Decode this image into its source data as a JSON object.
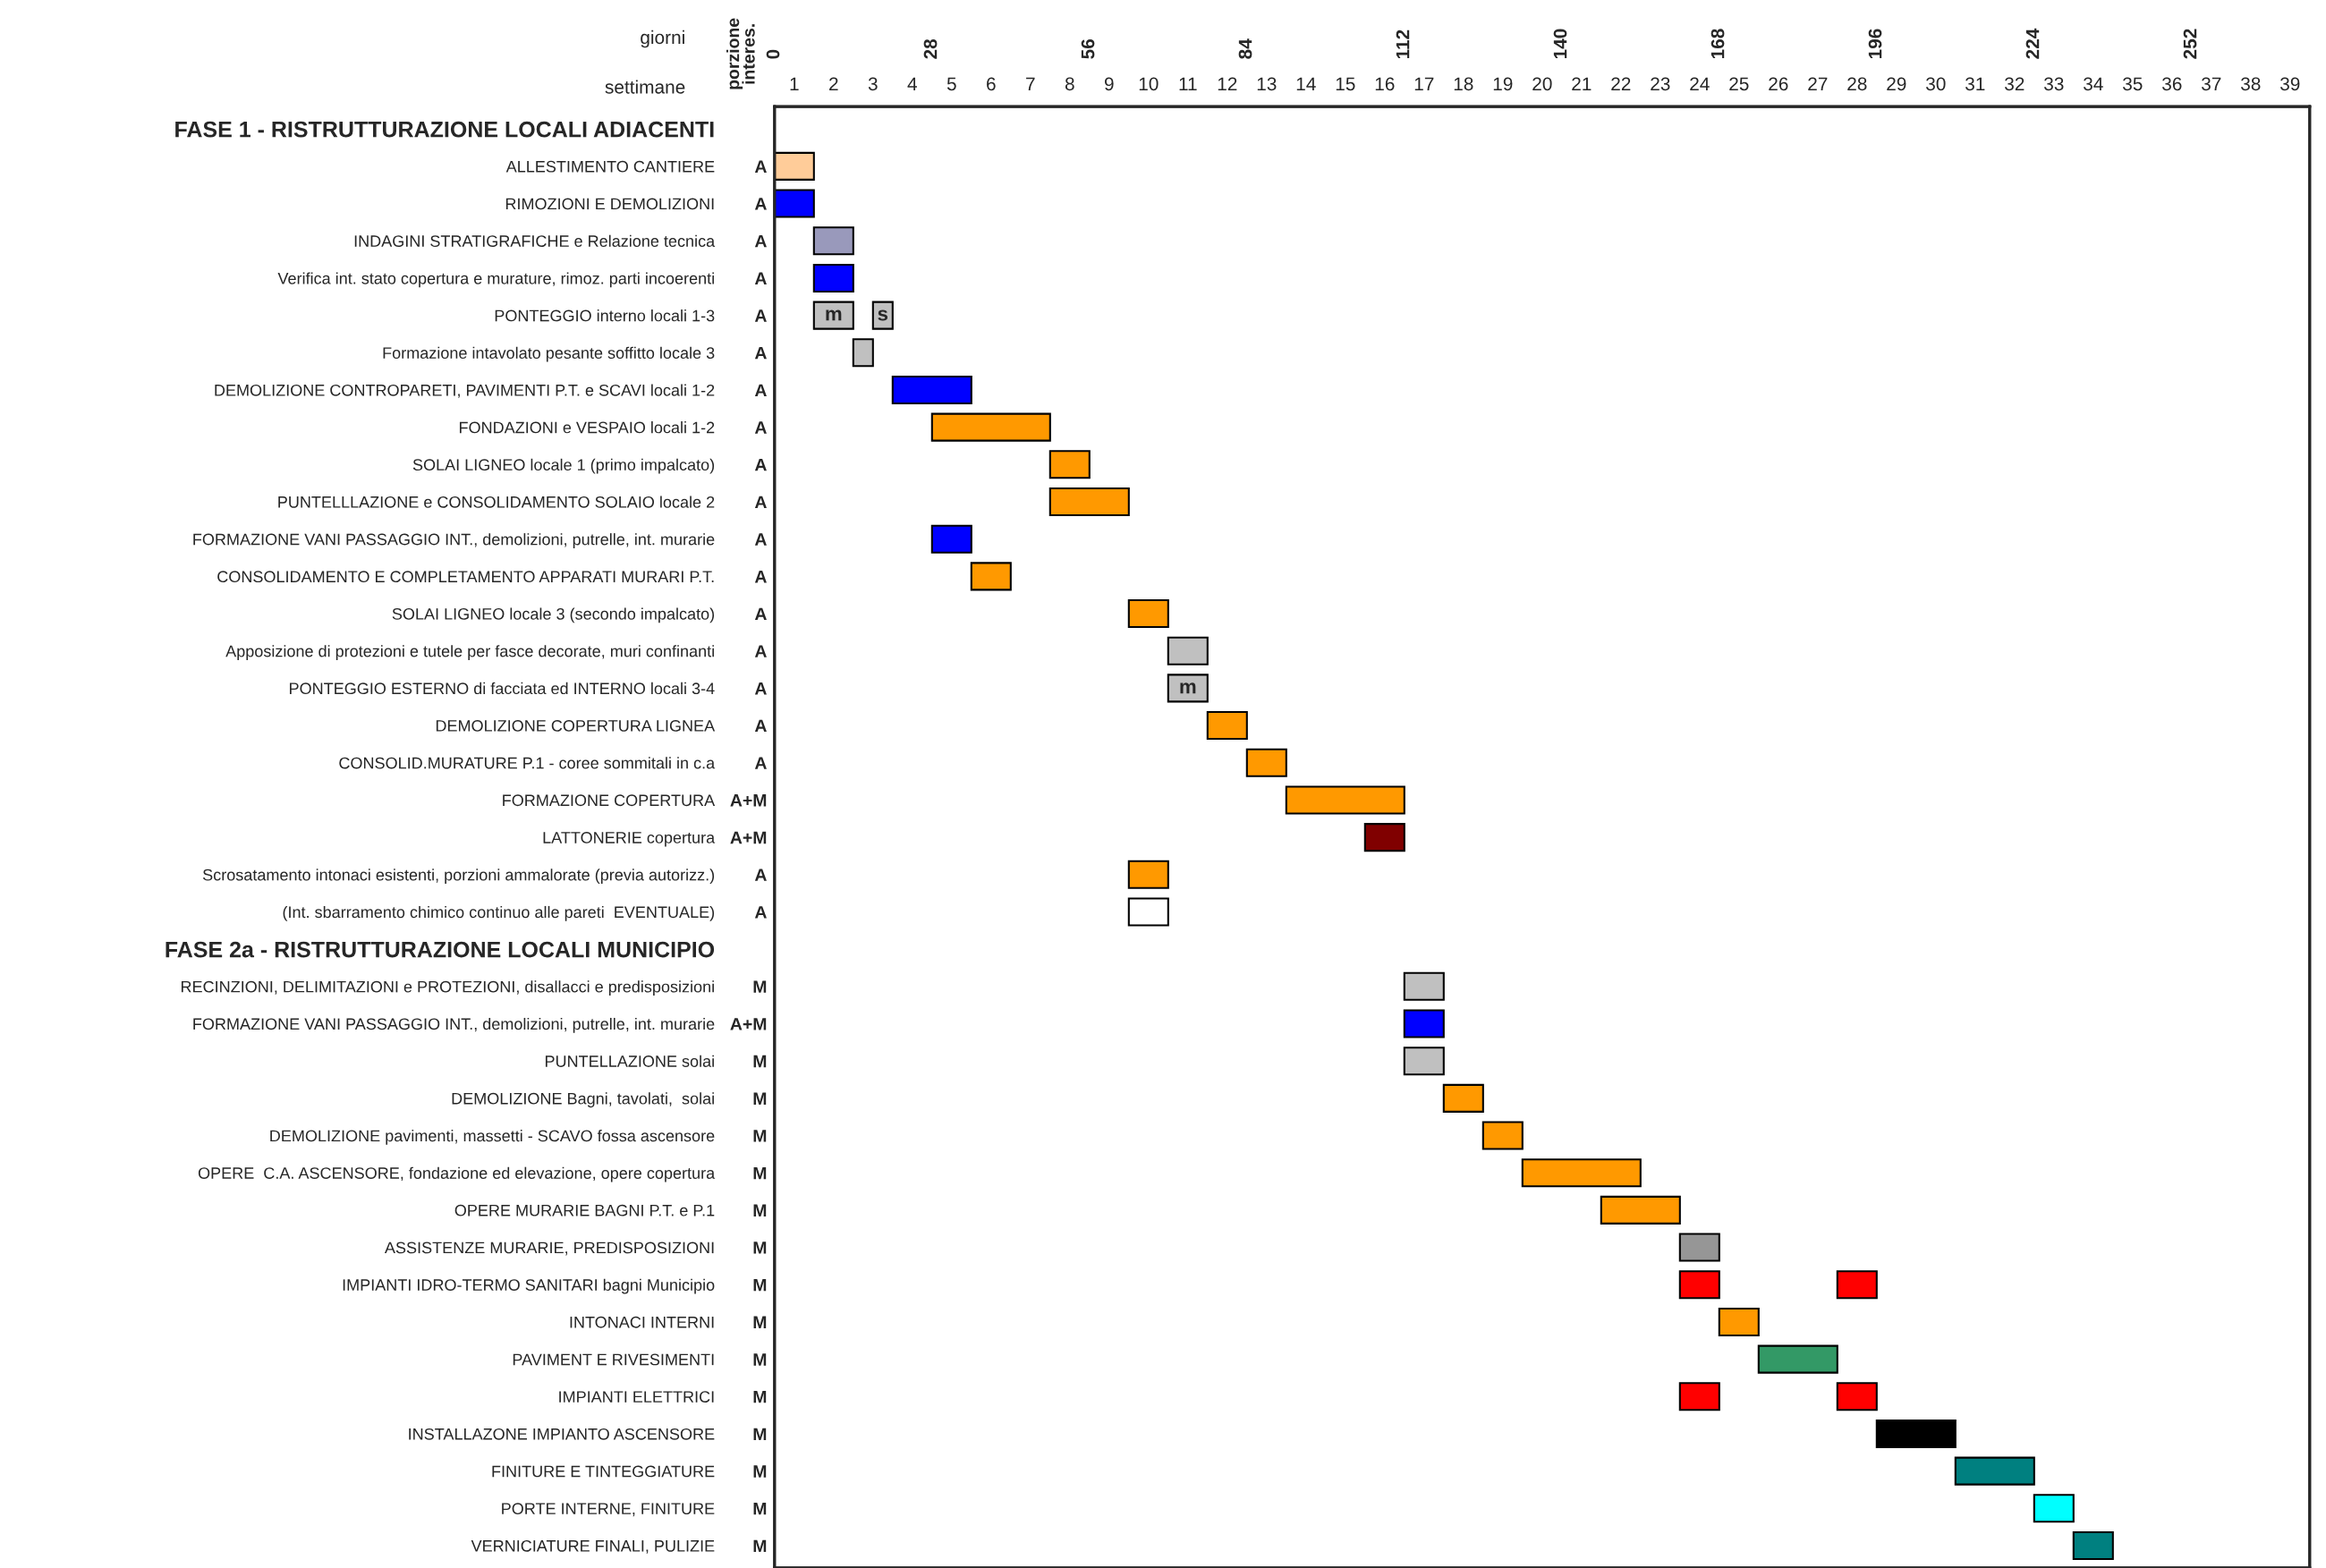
{
  "chart_data": {
    "type": "bar",
    "orientation": "horizontal",
    "xlabel": "settimane",
    "x2label": "giorni",
    "y2label": "porzione interes.",
    "categories": [
      "FASE 1 - RISTRUTTURAZIONE LOCALI ADIACENTI",
      "ALLESTIMENTO CANTIERE",
      "RIMOZIONI E DEMOLIZIONI",
      "INDAGINI STRATIGRAFICHE e Relazione tecnica",
      "Verifica int. stato copertura e murature, rimoz. parti incoerenti",
      "PONTEGGIO interno locali 1-3",
      "Formazione intavolato pesante soffitto locale 3",
      "DEMOLIZIONE CONTROPARETI, PAVIMENTI P.T. e SCAVI locali 1-2",
      "FONDAZIONI e VESPAIO locali 1-2",
      "SOLAI LIGNEO locale 1 (primo impalcato)",
      "PUNTELLLAZIONE e CONSOLIDAMENTO SOLAIO locale 2",
      "FORMAZIONE VANI PASSAGGIO INT., demolizioni, putrelle, int. murarie",
      "CONSOLIDAMENTO E COMPLETAMENTO APPARATI MURARI P.T.",
      "SOLAI LIGNEO locale 3 (secondo impalcato)",
      "Apposizione di protezioni e tutele per fasce decorate, muri confinanti",
      "PONTEGGIO ESTERNO di facciata ed INTERNO locali 3-4",
      "DEMOLIZIONE COPERTURA LIGNEA",
      "CONSOLID.MURATURE P.1 - coree sommitali in c.a",
      "FORMAZIONE COPERTURA",
      "LATTONERIE copertura",
      "Scrosatamento intonaci esistenti, porzioni ammalorate (previa autorizz.)",
      "(Int. sbarramento chimico continuo alle pareti  EVENTUALE)",
      "FASE 2a - RISTRUTTURAZIONE LOCALI MUNICIPIO",
      "RECINZIONI, DELIMITAZIONI e PROTEZIONI, disallacci e predisposizioni",
      "FORMAZIONE VANI PASSAGGIO INT., demolizioni, putrelle, int. murarie",
      "PUNTELLAZIONE solai",
      "DEMOLIZIONE Bagni, tavolati,  solai",
      "DEMOLIZIONE pavimenti, massetti - SCAVO fossa ascensore",
      "OPERE  C.A. ASCENSORE, fondazione ed elevazione, opere copertura",
      "OPERE MURARIE BAGNI P.T. e P.1",
      "ASSISTENZE MURARIE, PREDISPOSIZIONI",
      "IMPIANTI IDRO-TERMO SANITARI bagni Municipio",
      "INTONACI INTERNI",
      "PAVIMENT E RIVESIMENTI",
      "IMPIANTI ELETTRICI",
      "INSTALLAZONE IMPIANTO ASCENSORE",
      "FINITURE E TINTEGGIATURE",
      "PORTE INTERNE, FINITURE",
      "VERNICIATURE FINALI, PULIZIE"
    ],
    "y2_categories": [
      null,
      "A",
      "A",
      "A",
      "A",
      "A",
      "A",
      "A",
      "A",
      "A",
      "A",
      "A",
      "A",
      "A",
      "A",
      "A",
      "A",
      "A",
      "A+M",
      "A+M",
      "A",
      "A",
      null,
      "M",
      "A+M",
      "M",
      "M",
      "M",
      "M",
      "M",
      "M",
      "M",
      "M",
      "M",
      "M",
      "M",
      "M",
      "M",
      "M"
    ],
    "series": [
      {
        "base": [
          null,
          0,
          0,
          1,
          1,
          1,
          2,
          3,
          4,
          7,
          7,
          4,
          5,
          9,
          10,
          10,
          11,
          12,
          13,
          15,
          9,
          9,
          null,
          16,
          16,
          16,
          17,
          18,
          19,
          21,
          23,
          23,
          24,
          25,
          23,
          28,
          30,
          32,
          33
        ],
        "values": [
          null,
          1,
          1,
          1,
          1,
          1,
          0.5,
          2,
          3,
          1,
          2,
          1,
          1,
          1,
          1,
          1,
          1,
          1,
          3,
          1,
          1,
          1,
          null,
          1,
          1,
          1,
          1,
          1,
          3,
          2,
          1,
          1,
          1,
          2,
          1,
          2,
          2,
          1,
          1
        ],
        "colors": [
          null,
          "#ffcc99",
          "#0000ff",
          "#9999bb",
          "#0000ff",
          "#c0c0c0",
          "#c0c0c0",
          "#0000ff",
          "#ff9900",
          "#ff9900",
          "#ff9900",
          "#0000ff",
          "#ff9900",
          "#ff9900",
          "#c0c0c0",
          "#c0c0c0",
          "#ff9900",
          "#ff9900",
          "#ff9900",
          "#800000",
          "#ff9900",
          "#ffffff",
          null,
          "#c0c0c0",
          "#0000ff",
          "#c0c0c0",
          "#ff9900",
          "#ff9900",
          "#ff9900",
          "#ff9900",
          "#969696",
          "#ff0000",
          "#ff9900",
          "#339966",
          "#ff0000",
          "#000000",
          "#008080",
          "#00ffff",
          "#008080"
        ],
        "value_labels": [
          null,
          null,
          null,
          null,
          null,
          "m",
          null,
          null,
          null,
          null,
          null,
          null,
          null,
          null,
          null,
          "m",
          null,
          null,
          null,
          null,
          null,
          null,
          null,
          null,
          null,
          null,
          null,
          null,
          null,
          null,
          null,
          null,
          null,
          null,
          null,
          null,
          null,
          null,
          null
        ]
      },
      {
        "base": [
          null,
          null,
          null,
          null,
          null,
          2.5,
          null,
          null,
          null,
          null,
          null,
          null,
          null,
          null,
          null,
          null,
          null,
          null,
          null,
          null,
          null,
          null,
          null,
          null,
          null,
          null,
          null,
          null,
          null,
          null,
          null,
          27,
          null,
          null,
          27,
          null,
          null,
          null,
          null
        ],
        "values": [
          null,
          null,
          null,
          null,
          null,
          0.5,
          null,
          null,
          null,
          null,
          null,
          null,
          null,
          null,
          null,
          null,
          null,
          null,
          null,
          null,
          null,
          null,
          null,
          null,
          null,
          null,
          null,
          null,
          null,
          null,
          null,
          1,
          null,
          null,
          1,
          null,
          null,
          null,
          null
        ],
        "colors": [
          null,
          null,
          null,
          null,
          null,
          "#c0c0c0",
          null,
          null,
          null,
          null,
          null,
          null,
          null,
          null,
          null,
          null,
          null,
          null,
          null,
          null,
          null,
          null,
          null,
          null,
          null,
          null,
          null,
          null,
          null,
          null,
          null,
          "#ff0000",
          null,
          null,
          "#ff0000",
          null,
          null,
          null,
          null
        ],
        "value_labels": [
          null,
          null,
          null,
          null,
          null,
          "s",
          null,
          null,
          null,
          null,
          null,
          null,
          null,
          null,
          null,
          null,
          null,
          null,
          null,
          null,
          null,
          null,
          null,
          null,
          null,
          null,
          null,
          null,
          null,
          null,
          null,
          null,
          null,
          null,
          null,
          null,
          null,
          null,
          null
        ]
      }
    ],
    "xlim": [
      0,
      39
    ],
    "xticks": [
      {
        "value": 0.5,
        "label": "1"
      },
      {
        "value": 1.5,
        "label": "2"
      },
      {
        "value": 2.5,
        "label": "3"
      },
      {
        "value": 3.5,
        "label": "4"
      },
      {
        "value": 4.5,
        "label": "5"
      },
      {
        "value": 5.5,
        "label": "6"
      },
      {
        "value": 6.5,
        "label": "7"
      },
      {
        "value": 7.5,
        "label": "8"
      },
      {
        "value": 8.5,
        "label": "9"
      },
      {
        "value": 9.5,
        "label": "10"
      },
      {
        "value": 10.5,
        "label": "11"
      },
      {
        "value": 11.5,
        "label": "12"
      },
      {
        "value": 12.5,
        "label": "13"
      },
      {
        "value": 13.5,
        "label": "14"
      },
      {
        "value": 14.5,
        "label": "15"
      },
      {
        "value": 15.5,
        "label": "16"
      },
      {
        "value": 16.5,
        "label": "17"
      },
      {
        "value": 17.5,
        "label": "18"
      },
      {
        "value": 18.5,
        "label": "19"
      },
      {
        "value": 19.5,
        "label": "20"
      },
      {
        "value": 20.5,
        "label": "21"
      },
      {
        "value": 21.5,
        "label": "22"
      },
      {
        "value": 22.5,
        "label": "23"
      },
      {
        "value": 23.5,
        "label": "24"
      },
      {
        "value": 24.5,
        "label": "25"
      },
      {
        "value": 25.5,
        "label": "26"
      },
      {
        "value": 26.5,
        "label": "27"
      },
      {
        "value": 27.5,
        "label": "28"
      },
      {
        "value": 28.5,
        "label": "29"
      },
      {
        "value": 29.5,
        "label": "30"
      },
      {
        "value": 30.5,
        "label": "31"
      },
      {
        "value": 31.5,
        "label": "32"
      },
      {
        "value": 32.5,
        "label": "33"
      },
      {
        "value": 33.5,
        "label": "34"
      },
      {
        "value": 34.5,
        "label": "35"
      },
      {
        "value": 35.5,
        "label": "36"
      },
      {
        "value": 36.5,
        "label": "37"
      },
      {
        "value": 37.5,
        "label": "38"
      },
      {
        "value": 38.5,
        "label": "39"
      }
    ],
    "x2lim": [
      0,
      273
    ],
    "x2ticks": [
      0,
      28,
      56,
      84,
      112,
      140,
      168,
      196,
      224,
      252
    ],
    "grid": false,
    "legend": false
  }
}
